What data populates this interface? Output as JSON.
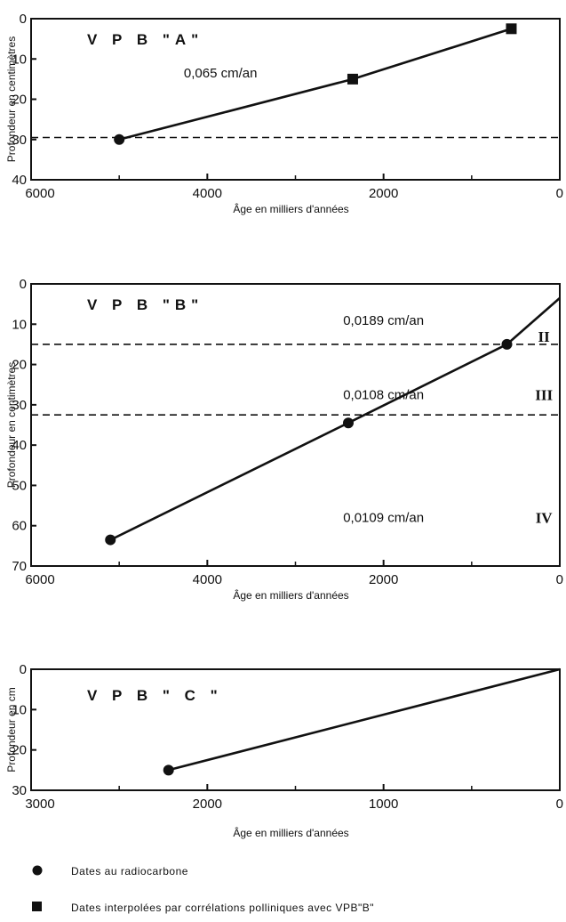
{
  "chart_data": [
    {
      "type": "line",
      "title": "V P B \"A\"",
      "xlabel": "Âge en milliers d'années",
      "ylabel": "Profondeur en centimètres",
      "xlim": [
        6000,
        0
      ],
      "ylim": [
        0,
        40
      ],
      "xticks": [
        "6000",
        "4000",
        "2000",
        "0"
      ],
      "yticks": [
        "0",
        "10",
        "20",
        "30",
        "40"
      ],
      "points": [
        {
          "x": 5000,
          "y": 30,
          "marker": "circle"
        },
        {
          "x": 2350,
          "y": 15,
          "marker": "square"
        },
        {
          "x": 550,
          "y": 2.5,
          "marker": "square"
        }
      ],
      "hlines": [
        29.5
      ],
      "annotations": [
        {
          "text": "0,065 cm/an",
          "x": 3850,
          "y": 13.5
        }
      ],
      "zones": []
    },
    {
      "type": "line",
      "title": "V P B \"B\"",
      "xlabel": "Âge en milliers d'années",
      "ylabel": "Profondeur en centimètres",
      "xlim": [
        6000,
        0
      ],
      "ylim": [
        0,
        70
      ],
      "xticks": [
        "6000",
        "4000",
        "2000",
        "0"
      ],
      "yticks": [
        "0",
        "10",
        "20",
        "30",
        "40",
        "50",
        "60",
        "70"
      ],
      "points": [
        {
          "x": 5100,
          "y": 63.5,
          "marker": "circle"
        },
        {
          "x": 2400,
          "y": 34.5,
          "marker": "circle"
        },
        {
          "x": 600,
          "y": 15,
          "marker": "circle"
        },
        {
          "x": 0,
          "y": 3.5,
          "marker": "none"
        }
      ],
      "hlines": [
        15,
        32.5
      ],
      "annotations": [
        {
          "text": "0,0189 cm/an",
          "x": 2000,
          "y": 9
        },
        {
          "text": "0,0108 cm/an",
          "x": 2000,
          "y": 27.5
        },
        {
          "text": "0,0109 cm/an",
          "x": 2000,
          "y": 58
        }
      ],
      "zones": [
        {
          "label": "II",
          "x": 180,
          "y": 13
        },
        {
          "label": "III",
          "x": 180,
          "y": 27.5
        },
        {
          "label": "IV",
          "x": 180,
          "y": 58
        }
      ]
    },
    {
      "type": "line",
      "title": "V P B \" C \"",
      "xlabel": "Âge en milliers d'années",
      "ylabel": "Profondeur en cm",
      "xlim": [
        3000,
        0
      ],
      "ylim": [
        0,
        30
      ],
      "xticks": [
        "3000",
        "2000",
        "1000",
        "0"
      ],
      "yticks": [
        "0",
        "10",
        "20",
        "30"
      ],
      "points": [
        {
          "x": 2220,
          "y": 25,
          "marker": "circle"
        },
        {
          "x": 0,
          "y": 0,
          "marker": "none"
        }
      ],
      "hlines": [],
      "annotations": [],
      "zones": []
    }
  ],
  "legend": [
    {
      "marker": "circle",
      "label": "Dates au radiocarbone"
    },
    {
      "marker": "square",
      "label": "Dates interpolées par corrélations polliniques avec VPB\"B\""
    }
  ]
}
